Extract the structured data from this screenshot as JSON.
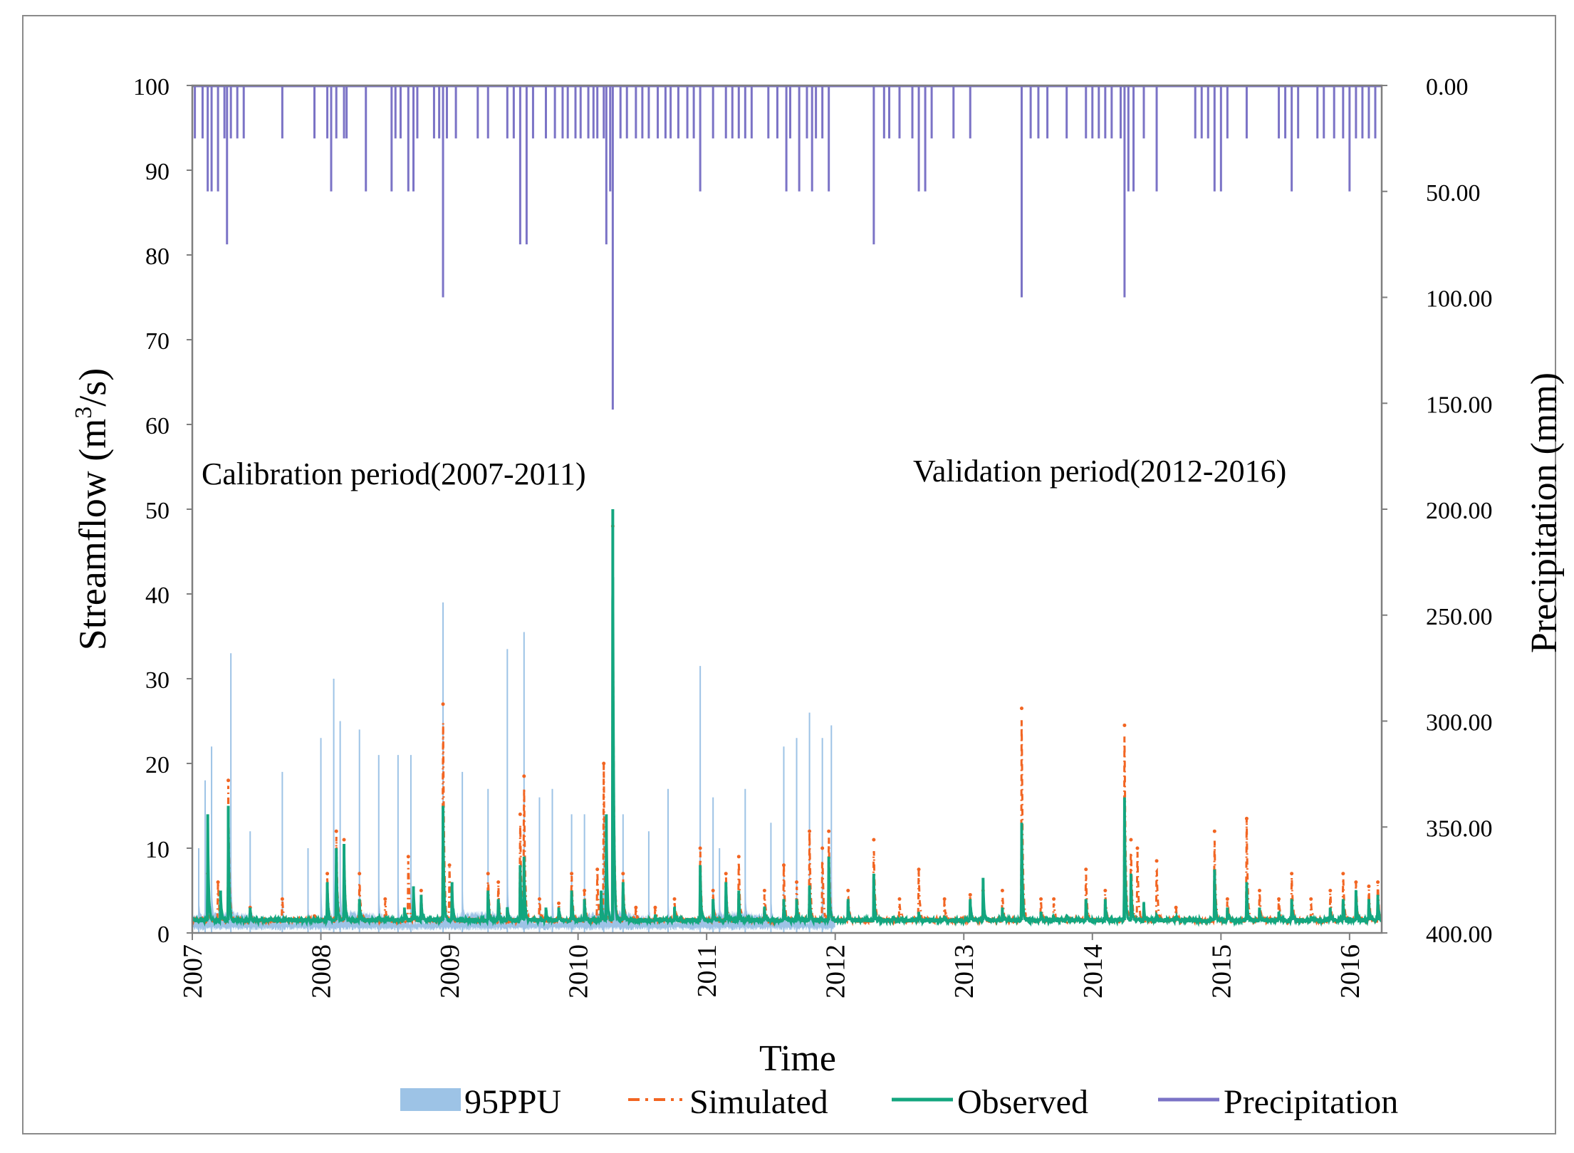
{
  "chart_data": {
    "type": "line",
    "title": "",
    "xlabel": "Time",
    "ylabel_left": "Streamflow (m³/s)",
    "ylabel_left_parts": {
      "base": "Streamflow (m",
      "sup": "3",
      "tail": "/s)"
    },
    "ylabel_right": "Precipitation (mm)",
    "ylim_left": [
      0,
      100
    ],
    "ylim_right": [
      0,
      400
    ],
    "right_axis_inverted": true,
    "xlim": [
      2007.0,
      2016.25
    ],
    "x_ticks": [
      "2007",
      "2008",
      "2009",
      "2010",
      "2011",
      "2012",
      "2013",
      "2014",
      "2015",
      "2016"
    ],
    "y_left_ticks": [
      "0",
      "10",
      "20",
      "30",
      "40",
      "50",
      "60",
      "70",
      "80",
      "90",
      "100"
    ],
    "y_right_ticks": [
      "0.00",
      "50.00",
      "100.00",
      "150.00",
      "200.00",
      "250.00",
      "300.00",
      "350.00",
      "400.00"
    ],
    "annotations": [
      {
        "text": "Calibration period(2007-2011)",
        "x": 2007.0
      },
      {
        "text": "Validation period(2012-2016)",
        "x": 2012.5
      }
    ],
    "legend": {
      "position": "bottom",
      "entries": [
        {
          "label": "95PPU",
          "style": "band",
          "color": "#9dc3e6"
        },
        {
          "label": "Simulated",
          "style": "dashdot",
          "color": "#f26522"
        },
        {
          "label": "Observed",
          "style": "solid",
          "color": "#13a67f"
        },
        {
          "label": "Precipitation",
          "style": "solid",
          "color": "#7b73c6"
        }
      ]
    },
    "baseline_flow": 1.5,
    "series": {
      "observed_peaks": [
        [
          2007.12,
          14
        ],
        [
          2007.22,
          5
        ],
        [
          2007.28,
          15
        ],
        [
          2007.45,
          3
        ],
        [
          2007.7,
          1.2
        ],
        [
          2007.9,
          1.5
        ],
        [
          2008.05,
          6
        ],
        [
          2008.12,
          10
        ],
        [
          2008.18,
          10.5
        ],
        [
          2008.3,
          4
        ],
        [
          2008.45,
          2
        ],
        [
          2008.65,
          3
        ],
        [
          2008.72,
          5.5
        ],
        [
          2008.78,
          4.5
        ],
        [
          2008.95,
          15
        ],
        [
          2009.02,
          6
        ],
        [
          2009.3,
          5
        ],
        [
          2009.38,
          4
        ],
        [
          2009.45,
          3
        ],
        [
          2009.55,
          8
        ],
        [
          2009.58,
          9
        ],
        [
          2009.75,
          3
        ],
        [
          2009.85,
          3
        ],
        [
          2009.95,
          5
        ],
        [
          2010.05,
          4
        ],
        [
          2010.18,
          5
        ],
        [
          2010.22,
          14
        ],
        [
          2010.27,
          50
        ],
        [
          2010.35,
          6
        ],
        [
          2010.6,
          2
        ],
        [
          2010.75,
          3
        ],
        [
          2010.95,
          8
        ],
        [
          2011.05,
          4
        ],
        [
          2011.15,
          6
        ],
        [
          2011.25,
          5
        ],
        [
          2011.45,
          3
        ],
        [
          2011.6,
          4
        ],
        [
          2011.7,
          4
        ],
        [
          2011.8,
          5.5
        ],
        [
          2011.95,
          9
        ],
        [
          2012.1,
          4
        ],
        [
          2012.3,
          7
        ],
        [
          2012.45,
          2
        ],
        [
          2012.65,
          2.5
        ],
        [
          2012.85,
          2
        ],
        [
          2013.05,
          4
        ],
        [
          2013.15,
          6.5
        ],
        [
          2013.3,
          3
        ],
        [
          2013.45,
          13
        ],
        [
          2013.6,
          2.5
        ],
        [
          2013.7,
          2
        ],
        [
          2013.8,
          2
        ],
        [
          2013.95,
          4
        ],
        [
          2014.1,
          4
        ],
        [
          2014.25,
          16
        ],
        [
          2014.3,
          7
        ],
        [
          2014.4,
          3.5
        ],
        [
          2014.5,
          2
        ],
        [
          2014.65,
          2
        ],
        [
          2014.95,
          7.5
        ],
        [
          2015.05,
          3
        ],
        [
          2015.2,
          6
        ],
        [
          2015.3,
          3
        ],
        [
          2015.45,
          2.5
        ],
        [
          2015.55,
          4
        ],
        [
          2015.7,
          2
        ],
        [
          2015.85,
          3
        ],
        [
          2015.95,
          4
        ],
        [
          2016.05,
          5
        ],
        [
          2016.15,
          4
        ],
        [
          2016.22,
          4.5
        ]
      ],
      "simulated_peaks": [
        [
          2007.12,
          7
        ],
        [
          2007.2,
          6
        ],
        [
          2007.28,
          18
        ],
        [
          2007.45,
          3
        ],
        [
          2007.7,
          4
        ],
        [
          2007.95,
          2
        ],
        [
          2008.05,
          7
        ],
        [
          2008.12,
          12
        ],
        [
          2008.18,
          11
        ],
        [
          2008.3,
          7
        ],
        [
          2008.5,
          4
        ],
        [
          2008.68,
          9
        ],
        [
          2008.78,
          5
        ],
        [
          2008.95,
          27
        ],
        [
          2009.0,
          8
        ],
        [
          2009.3,
          7
        ],
        [
          2009.38,
          6
        ],
        [
          2009.55,
          14
        ],
        [
          2009.58,
          18.5
        ],
        [
          2009.7,
          4
        ],
        [
          2009.85,
          3.5
        ],
        [
          2009.95,
          7
        ],
        [
          2010.05,
          5
        ],
        [
          2010.15,
          7.5
        ],
        [
          2010.2,
          20
        ],
        [
          2010.27,
          48
        ],
        [
          2010.35,
          7
        ],
        [
          2010.45,
          3
        ],
        [
          2010.6,
          3
        ],
        [
          2010.75,
          4
        ],
        [
          2010.95,
          10
        ],
        [
          2011.05,
          5
        ],
        [
          2011.15,
          7
        ],
        [
          2011.25,
          9
        ],
        [
          2011.45,
          5
        ],
        [
          2011.6,
          8
        ],
        [
          2011.7,
          6
        ],
        [
          2011.8,
          12
        ],
        [
          2011.9,
          10
        ],
        [
          2011.95,
          12
        ],
        [
          2012.1,
          5
        ],
        [
          2012.3,
          11
        ],
        [
          2012.5,
          4
        ],
        [
          2012.65,
          7.5
        ],
        [
          2012.85,
          4
        ],
        [
          2013.05,
          4.5
        ],
        [
          2013.15,
          5
        ],
        [
          2013.3,
          5
        ],
        [
          2013.45,
          26.5
        ],
        [
          2013.6,
          4
        ],
        [
          2013.7,
          4
        ],
        [
          2013.95,
          7.5
        ],
        [
          2014.1,
          5
        ],
        [
          2014.25,
          24.5
        ],
        [
          2014.3,
          11
        ],
        [
          2014.35,
          10
        ],
        [
          2014.5,
          8.5
        ],
        [
          2014.65,
          3
        ],
        [
          2014.95,
          12
        ],
        [
          2015.05,
          4
        ],
        [
          2015.2,
          13.5
        ],
        [
          2015.3,
          5
        ],
        [
          2015.45,
          4
        ],
        [
          2015.55,
          7
        ],
        [
          2015.7,
          4
        ],
        [
          2015.85,
          5
        ],
        [
          2015.95,
          7
        ],
        [
          2016.05,
          6
        ],
        [
          2016.15,
          5.5
        ],
        [
          2016.22,
          6
        ]
      ],
      "ppu_upper_peaks": [
        [
          2007.05,
          10
        ],
        [
          2007.1,
          18
        ],
        [
          2007.15,
          22
        ],
        [
          2007.3,
          33
        ],
        [
          2007.45,
          12
        ],
        [
          2007.7,
          19
        ],
        [
          2007.9,
          10
        ],
        [
          2008.0,
          23
        ],
        [
          2008.1,
          30
        ],
        [
          2008.15,
          25
        ],
        [
          2008.3,
          24
        ],
        [
          2008.45,
          21
        ],
        [
          2008.6,
          21
        ],
        [
          2008.7,
          21
        ],
        [
          2008.95,
          39
        ],
        [
          2009.1,
          19
        ],
        [
          2009.3,
          17
        ],
        [
          2009.45,
          33.5
        ],
        [
          2009.58,
          35.5
        ],
        [
          2009.7,
          16
        ],
        [
          2009.8,
          17
        ],
        [
          2009.95,
          14
        ],
        [
          2010.05,
          14
        ],
        [
          2010.2,
          14
        ],
        [
          2010.27,
          50
        ],
        [
          2010.35,
          14
        ],
        [
          2010.55,
          12
        ],
        [
          2010.7,
          17
        ],
        [
          2010.95,
          31.5
        ],
        [
          2011.05,
          16
        ],
        [
          2011.1,
          10
        ],
        [
          2011.3,
          17
        ],
        [
          2011.5,
          13
        ],
        [
          2011.6,
          22
        ],
        [
          2011.7,
          23
        ],
        [
          2011.8,
          26
        ],
        [
          2011.9,
          23
        ],
        [
          2011.97,
          24.5
        ]
      ],
      "ppu_lower_mean": 0.5,
      "precipitation_mm": [
        [
          2007.02,
          25
        ],
        [
          2007.08,
          25
        ],
        [
          2007.12,
          50
        ],
        [
          2007.15,
          50
        ],
        [
          2007.2,
          50
        ],
        [
          2007.25,
          25
        ],
        [
          2007.27,
          75
        ],
        [
          2007.3,
          25
        ],
        [
          2007.35,
          25
        ],
        [
          2007.4,
          25
        ],
        [
          2007.7,
          25
        ],
        [
          2007.95,
          25
        ],
        [
          2008.05,
          25
        ],
        [
          2008.08,
          50
        ],
        [
          2008.12,
          25
        ],
        [
          2008.18,
          25
        ],
        [
          2008.2,
          25
        ],
        [
          2008.35,
          50
        ],
        [
          2008.55,
          50
        ],
        [
          2008.58,
          25
        ],
        [
          2008.62,
          25
        ],
        [
          2008.68,
          50
        ],
        [
          2008.72,
          50
        ],
        [
          2008.75,
          25
        ],
        [
          2008.88,
          25
        ],
        [
          2008.92,
          25
        ],
        [
          2008.95,
          100
        ],
        [
          2008.98,
          25
        ],
        [
          2009.05,
          25
        ],
        [
          2009.22,
          25
        ],
        [
          2009.3,
          25
        ],
        [
          2009.45,
          25
        ],
        [
          2009.5,
          25
        ],
        [
          2009.55,
          75
        ],
        [
          2009.6,
          75
        ],
        [
          2009.65,
          25
        ],
        [
          2009.75,
          25
        ],
        [
          2009.82,
          25
        ],
        [
          2009.88,
          25
        ],
        [
          2009.92,
          25
        ],
        [
          2009.98,
          25
        ],
        [
          2010.02,
          25
        ],
        [
          2010.08,
          25
        ],
        [
          2010.12,
          25
        ],
        [
          2010.15,
          25
        ],
        [
          2010.2,
          25
        ],
        [
          2010.22,
          75
        ],
        [
          2010.25,
          50
        ],
        [
          2010.27,
          153
        ],
        [
          2010.33,
          25
        ],
        [
          2010.38,
          25
        ],
        [
          2010.45,
          25
        ],
        [
          2010.5,
          25
        ],
        [
          2010.55,
          25
        ],
        [
          2010.62,
          25
        ],
        [
          2010.68,
          25
        ],
        [
          2010.72,
          25
        ],
        [
          2010.78,
          25
        ],
        [
          2010.85,
          25
        ],
        [
          2010.9,
          25
        ],
        [
          2010.95,
          50
        ],
        [
          2011.05,
          25
        ],
        [
          2011.15,
          25
        ],
        [
          2011.2,
          25
        ],
        [
          2011.25,
          25
        ],
        [
          2011.3,
          25
        ],
        [
          2011.35,
          25
        ],
        [
          2011.48,
          25
        ],
        [
          2011.55,
          25
        ],
        [
          2011.62,
          50
        ],
        [
          2011.65,
          25
        ],
        [
          2011.72,
          50
        ],
        [
          2011.78,
          25
        ],
        [
          2011.82,
          50
        ],
        [
          2011.85,
          25
        ],
        [
          2011.9,
          25
        ],
        [
          2011.95,
          50
        ],
        [
          2012.3,
          75
        ],
        [
          2012.38,
          25
        ],
        [
          2012.42,
          25
        ],
        [
          2012.5,
          25
        ],
        [
          2012.6,
          25
        ],
        [
          2012.65,
          50
        ],
        [
          2012.7,
          50
        ],
        [
          2012.75,
          25
        ],
        [
          2012.92,
          25
        ],
        [
          2013.05,
          25
        ],
        [
          2013.45,
          100
        ],
        [
          2013.52,
          25
        ],
        [
          2013.58,
          25
        ],
        [
          2013.65,
          25
        ],
        [
          2013.8,
          25
        ],
        [
          2013.95,
          25
        ],
        [
          2014.0,
          25
        ],
        [
          2014.05,
          25
        ],
        [
          2014.1,
          25
        ],
        [
          2014.15,
          25
        ],
        [
          2014.22,
          25
        ],
        [
          2014.25,
          100
        ],
        [
          2014.28,
          50
        ],
        [
          2014.32,
          50
        ],
        [
          2014.4,
          25
        ],
        [
          2014.5,
          50
        ],
        [
          2014.8,
          25
        ],
        [
          2014.85,
          25
        ],
        [
          2014.9,
          25
        ],
        [
          2014.95,
          50
        ],
        [
          2015.0,
          50
        ],
        [
          2015.05,
          25
        ],
        [
          2015.2,
          25
        ],
        [
          2015.45,
          25
        ],
        [
          2015.5,
          25
        ],
        [
          2015.55,
          50
        ],
        [
          2015.6,
          25
        ],
        [
          2015.75,
          25
        ],
        [
          2015.8,
          25
        ],
        [
          2015.88,
          25
        ],
        [
          2015.95,
          25
        ],
        [
          2016.0,
          50
        ],
        [
          2016.05,
          25
        ],
        [
          2016.1,
          25
        ],
        [
          2016.15,
          25
        ],
        [
          2016.2,
          25
        ]
      ]
    }
  }
}
